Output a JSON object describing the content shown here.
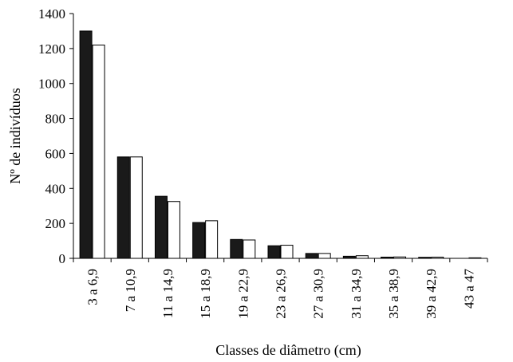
{
  "chart_data": {
    "type": "bar",
    "xlabel": "Classes de diâmetro (cm)",
    "ylabel": "Nº de indivíduos",
    "ylim": [
      0,
      1400
    ],
    "yticks": [
      0,
      200,
      400,
      600,
      800,
      1000,
      1200,
      1400
    ],
    "grid": false,
    "categories": [
      "3 a 6,9",
      "7 a 10,9",
      "11 a 14,9",
      "15 a 18,9",
      "19 a 22,9",
      "23 a 26,9",
      "27 a 30,9",
      "31 a 34,9",
      "35 a 38,9",
      "39 a 42,9",
      "43 a 47"
    ],
    "series": [
      {
        "values": [
          1300,
          580,
          355,
          205,
          108,
          72,
          28,
          12,
          7,
          6,
          0
        ],
        "color": "#1a1a1a"
      },
      {
        "values": [
          1220,
          580,
          325,
          215,
          105,
          75,
          28,
          15,
          8,
          7,
          3
        ],
        "color": "#ffffff"
      }
    ]
  }
}
